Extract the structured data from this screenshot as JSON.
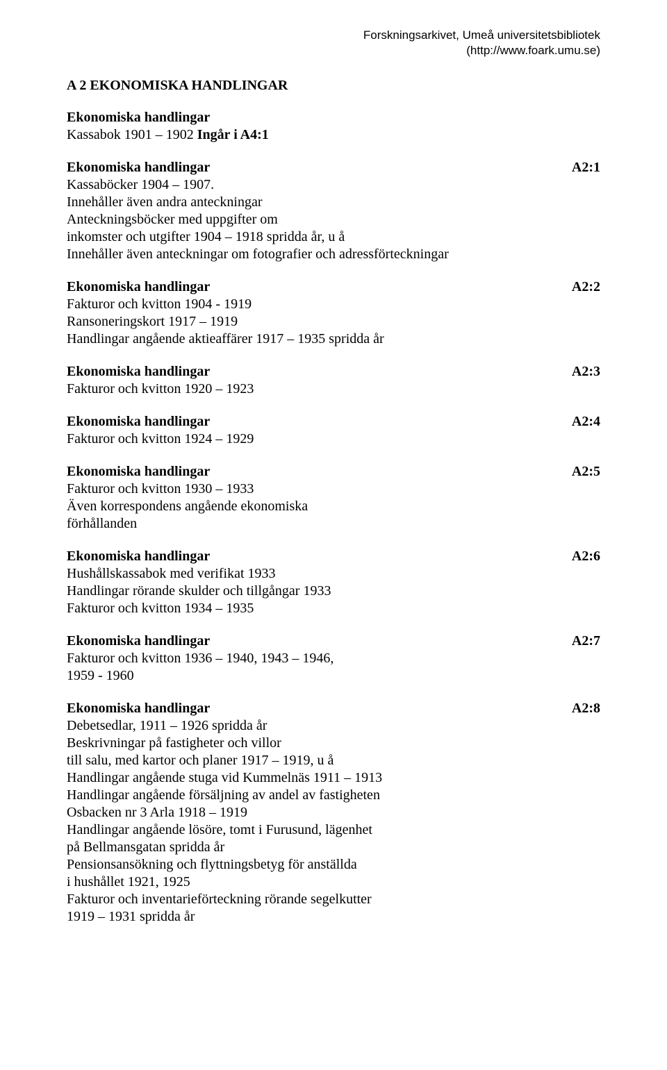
{
  "header": {
    "line1": "Forskningsarkivet, Umeå universitetsbibliotek",
    "line2": "(http://www.foark.umu.se)"
  },
  "section_title": "A 2 EKONOMISKA HANDLINGAR",
  "preamble": {
    "label": "Ekonomiska handlingar",
    "lines": [
      "Kassabok 1901 – 1902 Ingår i A4:1"
    ],
    "ingar_prefix": "Kassabok 1901 – 1902 ",
    "ingar_bold": "Ingår i A4:1"
  },
  "entries": [
    {
      "label": "Ekonomiska handlingar",
      "code": "A2:1",
      "lines": [
        "Kassaböcker 1904 – 1907.",
        "Innehåller även andra anteckningar",
        "Anteckningsböcker med uppgifter om",
        "inkomster och utgifter 1904 – 1918 spridda år, u å",
        "Innehåller även anteckningar om fotografier och adressförteckningar"
      ]
    },
    {
      "label": "Ekonomiska handlingar",
      "code": "A2:2",
      "lines": [
        "Fakturor och kvitton 1904 - 1919",
        "Ransoneringskort 1917 – 1919",
        "Handlingar angående aktieaffärer 1917 – 1935 spridda år"
      ]
    },
    {
      "label": "Ekonomiska handlingar",
      "code": "A2:3",
      "lines": [
        "Fakturor och kvitton 1920 – 1923"
      ]
    },
    {
      "label": "Ekonomiska handlingar",
      "code": "A2:4",
      "lines": [
        "Fakturor och kvitton 1924 – 1929"
      ]
    },
    {
      "label": "Ekonomiska handlingar",
      "code": "A2:5",
      "lines": [
        "Fakturor och kvitton 1930 – 1933",
        "Även korrespondens angående ekonomiska",
        "förhållanden"
      ]
    },
    {
      "label": "Ekonomiska handlingar",
      "code": "A2:6",
      "lines": [
        "Hushållskassabok med verifikat 1933",
        "Handlingar rörande skulder och tillgångar 1933",
        "Fakturor och kvitton 1934 – 1935"
      ]
    },
    {
      "label": "Ekonomiska handlingar",
      "code": "A2:7",
      "lines": [
        "Fakturor och kvitton 1936 – 1940, 1943 – 1946,",
        "1959 - 1960"
      ]
    },
    {
      "label": "Ekonomiska handlingar",
      "code": "A2:8",
      "lines": [
        "Debetsedlar, 1911 – 1926 spridda år",
        "Beskrivningar på fastigheter och villor",
        "till salu, med kartor och planer 1917 – 1919, u å",
        "Handlingar angående stuga vid Kummelnäs 1911 – 1913",
        "Handlingar angående försäljning av andel av fastigheten",
        "Osbacken nr 3 Arla 1918 – 1919",
        "Handlingar angående lösöre, tomt i Furusund, lägenhet",
        "på Bellmansgatan spridda år",
        "Pensionsansökning och flyttningsbetyg för anställda",
        "i hushållet 1921, 1925",
        "Fakturor och inventarieförteckning rörande segelkutter",
        "1919 – 1931 spridda år"
      ]
    }
  ]
}
